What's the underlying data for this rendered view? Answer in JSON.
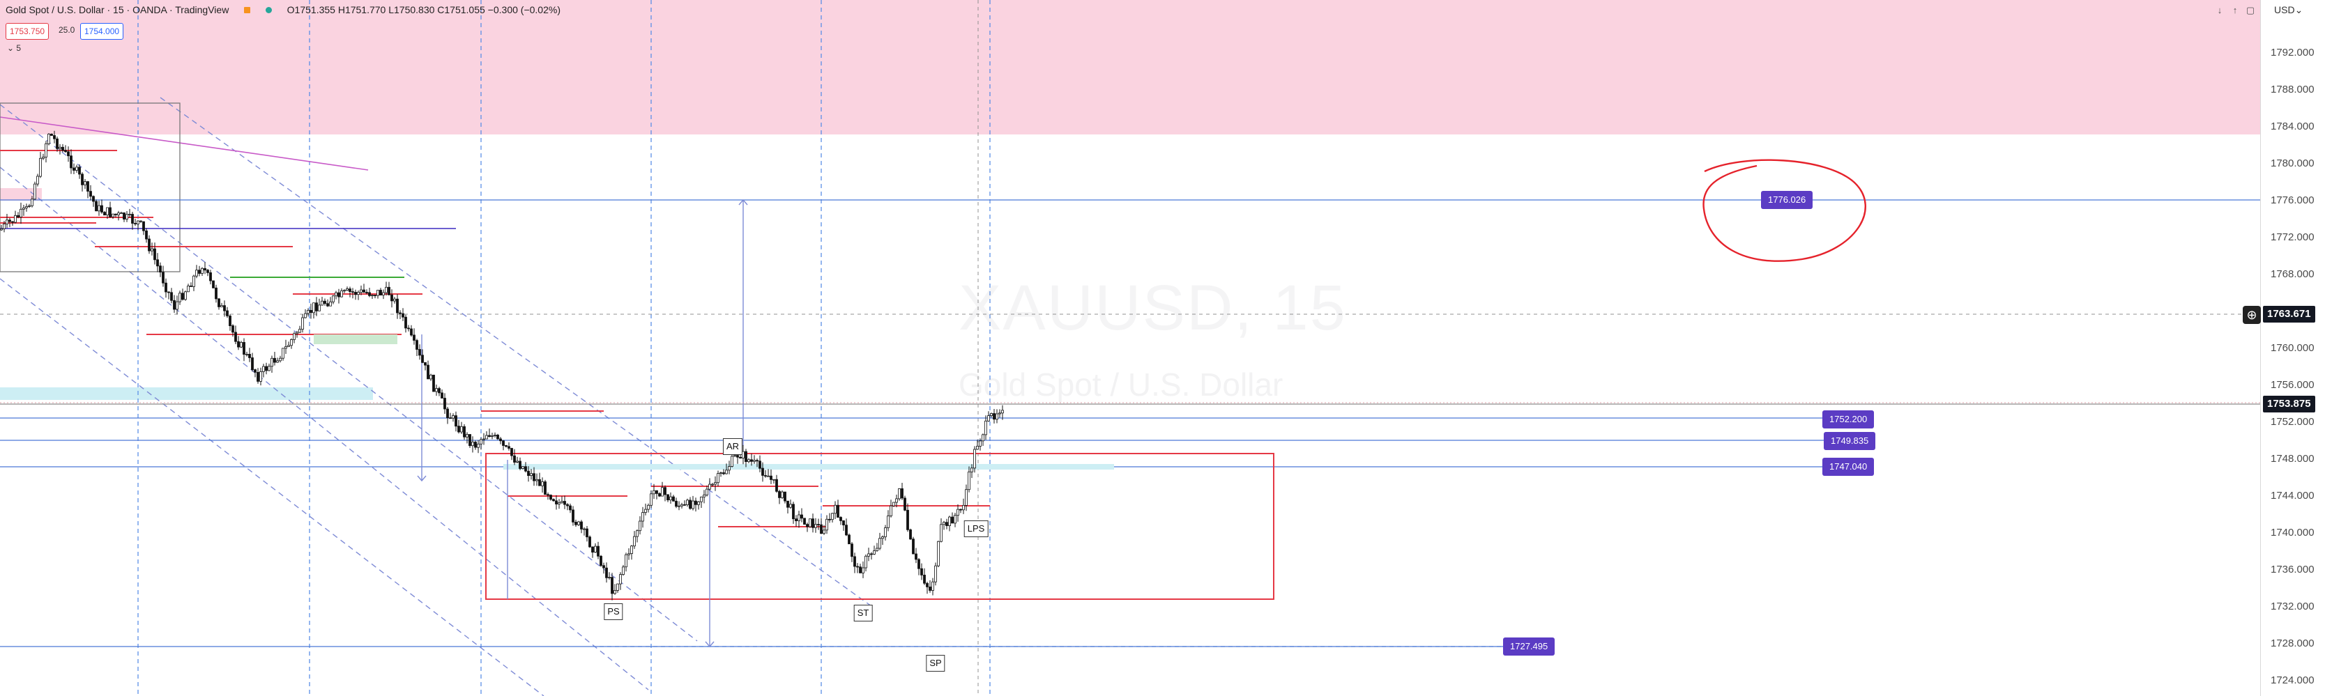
{
  "header": {
    "symbol_title": "Gold Spot / U.S. Dollar · 15 · OANDA · TradingView",
    "ohlc": "O1751.355  H1751.770  L1750.830  C1751.055  −0.300 (−0.02%)",
    "sell_price": "1753.750",
    "spread": "25.0",
    "buy_price": "1754.000",
    "interval_toggle": "5",
    "currency_menu": "USD"
  },
  "watermark": {
    "symbol": "XAUUSD, 15",
    "description": "Gold Spot / U.S. Dollar"
  },
  "axis": {
    "ticks": [
      "1792.000",
      "1788.000",
      "1784.000",
      "1780.000",
      "1776.000",
      "1772.000",
      "1768.000",
      "1764.000",
      "1760.000",
      "1756.000",
      "1752.000",
      "1748.000",
      "1744.000",
      "1740.000",
      "1736.000",
      "1732.000",
      "1728.000",
      "1724.000"
    ],
    "crosshair_value": "1763.671",
    "current_price": "1753.875"
  },
  "price_labels": {
    "target": "1776.026",
    "l1": "1752.200",
    "l2": "1749.835",
    "l3": "1747.040",
    "low": "1727.495"
  },
  "wyckoff_labels": {
    "ar": "AR",
    "ps": "PS",
    "st": "ST",
    "lps": "LPS",
    "sp": "SP"
  },
  "colors": {
    "supply_zone": "#fad3e0",
    "range_box": "#e53945",
    "label_bg": "#5b3cc4",
    "channel": "#7e8bd6",
    "grid_vertical": "#5b8ee6",
    "annotation_circle": "#e5222b"
  },
  "icons": {
    "crosshair_add": "plus-circle-icon",
    "scroll_down": "arrow-down-icon",
    "scroll_up": "arrow-up-icon",
    "maximize": "maximize-icon",
    "minimize": "minimize-icon"
  }
}
